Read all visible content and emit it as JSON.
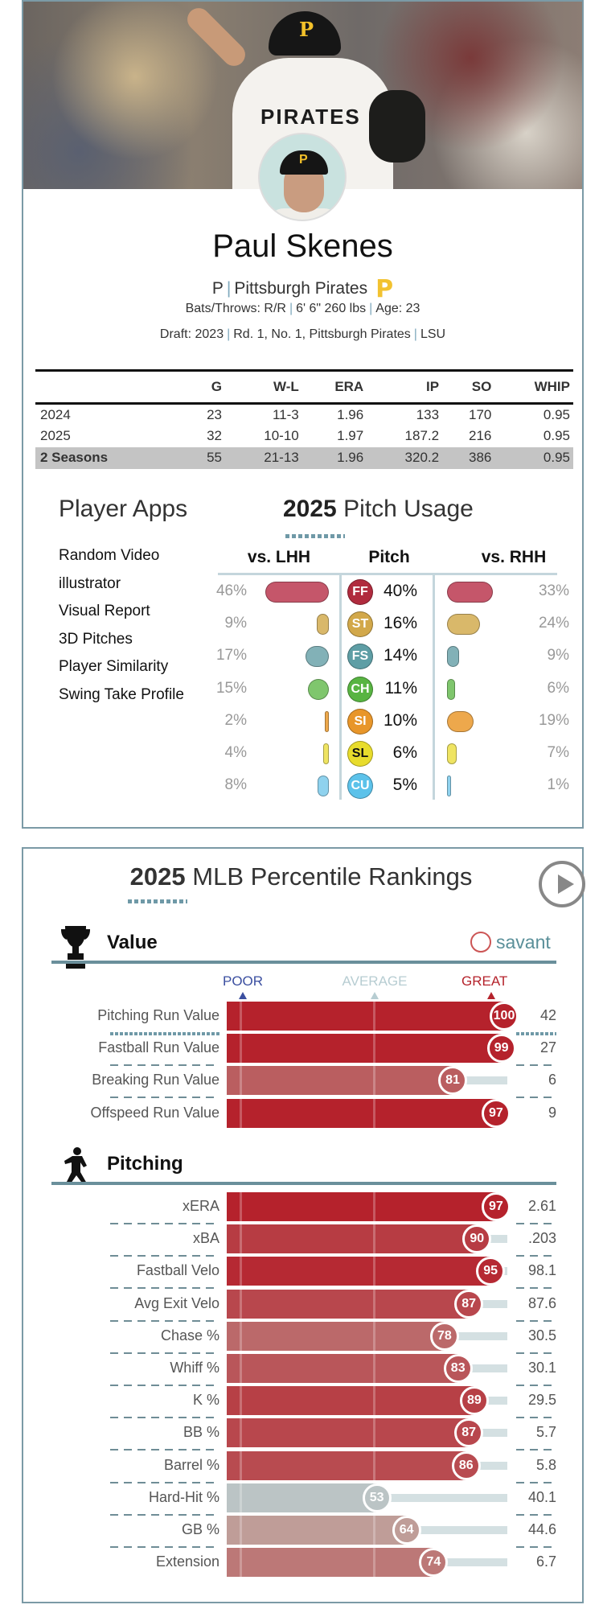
{
  "player": {
    "name": "Paul Skenes",
    "position": "P",
    "team": "Pittsburgh Pirates",
    "team_logo": "P",
    "hero_jersey_text": "PIRATES",
    "bats_throws": "Bats/Throws: R/R",
    "size": "6' 6\" 260 lbs",
    "age": "Age: 23",
    "draft_label": "Draft:",
    "draft_year": "2023",
    "draft_pick": "Rd. 1, No. 1, Pittsburgh Pirates",
    "school": "LSU"
  },
  "stats": {
    "headers": [
      "",
      "G",
      "W-L",
      "ERA",
      "IP",
      "SO",
      "WHIP"
    ],
    "rows": [
      [
        "2024",
        "23",
        "11-3",
        "1.96",
        "133",
        "170",
        "0.95"
      ],
      [
        "2025",
        "32",
        "10-10",
        "1.97",
        "187.2",
        "216",
        "0.95"
      ],
      [
        "2 Seasons",
        "55",
        "21-13",
        "1.96",
        "320.2",
        "386",
        "0.95"
      ]
    ]
  },
  "apps": {
    "title": "Player Apps",
    "items": [
      "Random Video",
      "illustrator",
      "Visual Report",
      "3D Pitches",
      "Player Similarity",
      "Swing Take Profile"
    ]
  },
  "usage": {
    "title_year": "2025",
    "title_rest": "Pitch Usage",
    "col_lhh": "vs. LHH",
    "col_pitch": "Pitch",
    "col_rhh": "vs. RHH",
    "pitches": [
      {
        "code": "FF",
        "pct": "40%",
        "lhh": 46,
        "lhh_label": "46%",
        "rhh": 33,
        "rhh_label": "33%",
        "color": "#c5566a",
        "dark": "#b02b3e",
        "text": "#fff"
      },
      {
        "code": "ST",
        "pct": "16%",
        "lhh": 9,
        "lhh_label": "9%",
        "rhh": 24,
        "rhh_label": "24%",
        "color": "#d9b86a",
        "dark": "#d2a84a",
        "text": "#fff"
      },
      {
        "code": "FS",
        "pct": "14%",
        "lhh": 17,
        "lhh_label": "17%",
        "rhh": 9,
        "rhh_label": "9%",
        "color": "#82b1b7",
        "dark": "#5e9ea5",
        "text": "#fff"
      },
      {
        "code": "CH",
        "pct": "11%",
        "lhh": 15,
        "lhh_label": "15%",
        "rhh": 6,
        "rhh_label": "6%",
        "color": "#7fc66d",
        "dark": "#58b442",
        "text": "#fff"
      },
      {
        "code": "SI",
        "pct": "10%",
        "lhh": 2,
        "lhh_label": "2%",
        "rhh": 19,
        "rhh_label": "19%",
        "color": "#eda84c",
        "dark": "#e8962a",
        "text": "#fff"
      },
      {
        "code": "SL",
        "pct": "6%",
        "lhh": 4,
        "lhh_label": "4%",
        "rhh": 7,
        "rhh_label": "7%",
        "color": "#efe462",
        "dark": "#e8dc2c",
        "text": "#111"
      },
      {
        "code": "CU",
        "pct": "5%",
        "lhh": 8,
        "lhh_label": "8%",
        "rhh": 1,
        "rhh_label": "1%",
        "color": "#8fd2ee",
        "dark": "#5cc2ea",
        "text": "#fff"
      }
    ]
  },
  "rankings": {
    "title_year": "2025",
    "title_rest": "MLB Percentile Rankings",
    "scale": {
      "poor": "POOR",
      "average": "AVERAGE",
      "great": "GREAT"
    },
    "brand": "savant",
    "sections": [
      {
        "title": "Value",
        "icon": "trophy-icon",
        "rows": [
          {
            "label": "Pitching Run Value",
            "percentile": 100,
            "value": "42"
          },
          {
            "label": "Fastball Run Value",
            "percentile": 99,
            "value": "27"
          },
          {
            "label": "Breaking Run Value",
            "percentile": 81,
            "value": "6"
          },
          {
            "label": "Offspeed Run Value",
            "percentile": 97,
            "value": "9"
          }
        ]
      },
      {
        "title": "Pitching",
        "icon": "pitcher-icon",
        "rows": [
          {
            "label": "xERA",
            "percentile": 97,
            "value": "2.61"
          },
          {
            "label": "xBA",
            "percentile": 90,
            "value": ".203"
          },
          {
            "label": "Fastball Velo",
            "percentile": 95,
            "value": "98.1"
          },
          {
            "label": "Avg Exit Velo",
            "percentile": 87,
            "value": "87.6"
          },
          {
            "label": "Chase %",
            "percentile": 78,
            "value": "30.5"
          },
          {
            "label": "Whiff %",
            "percentile": 83,
            "value": "30.1"
          },
          {
            "label": "K %",
            "percentile": 89,
            "value": "29.5"
          },
          {
            "label": "BB %",
            "percentile": 87,
            "value": "5.7"
          },
          {
            "label": "Barrel %",
            "percentile": 86,
            "value": "5.8"
          },
          {
            "label": "Hard-Hit %",
            "percentile": 53,
            "value": "40.1"
          },
          {
            "label": "GB %",
            "percentile": 64,
            "value": "44.6"
          },
          {
            "label": "Extension",
            "percentile": 74,
            "value": "6.7"
          }
        ]
      }
    ]
  }
}
